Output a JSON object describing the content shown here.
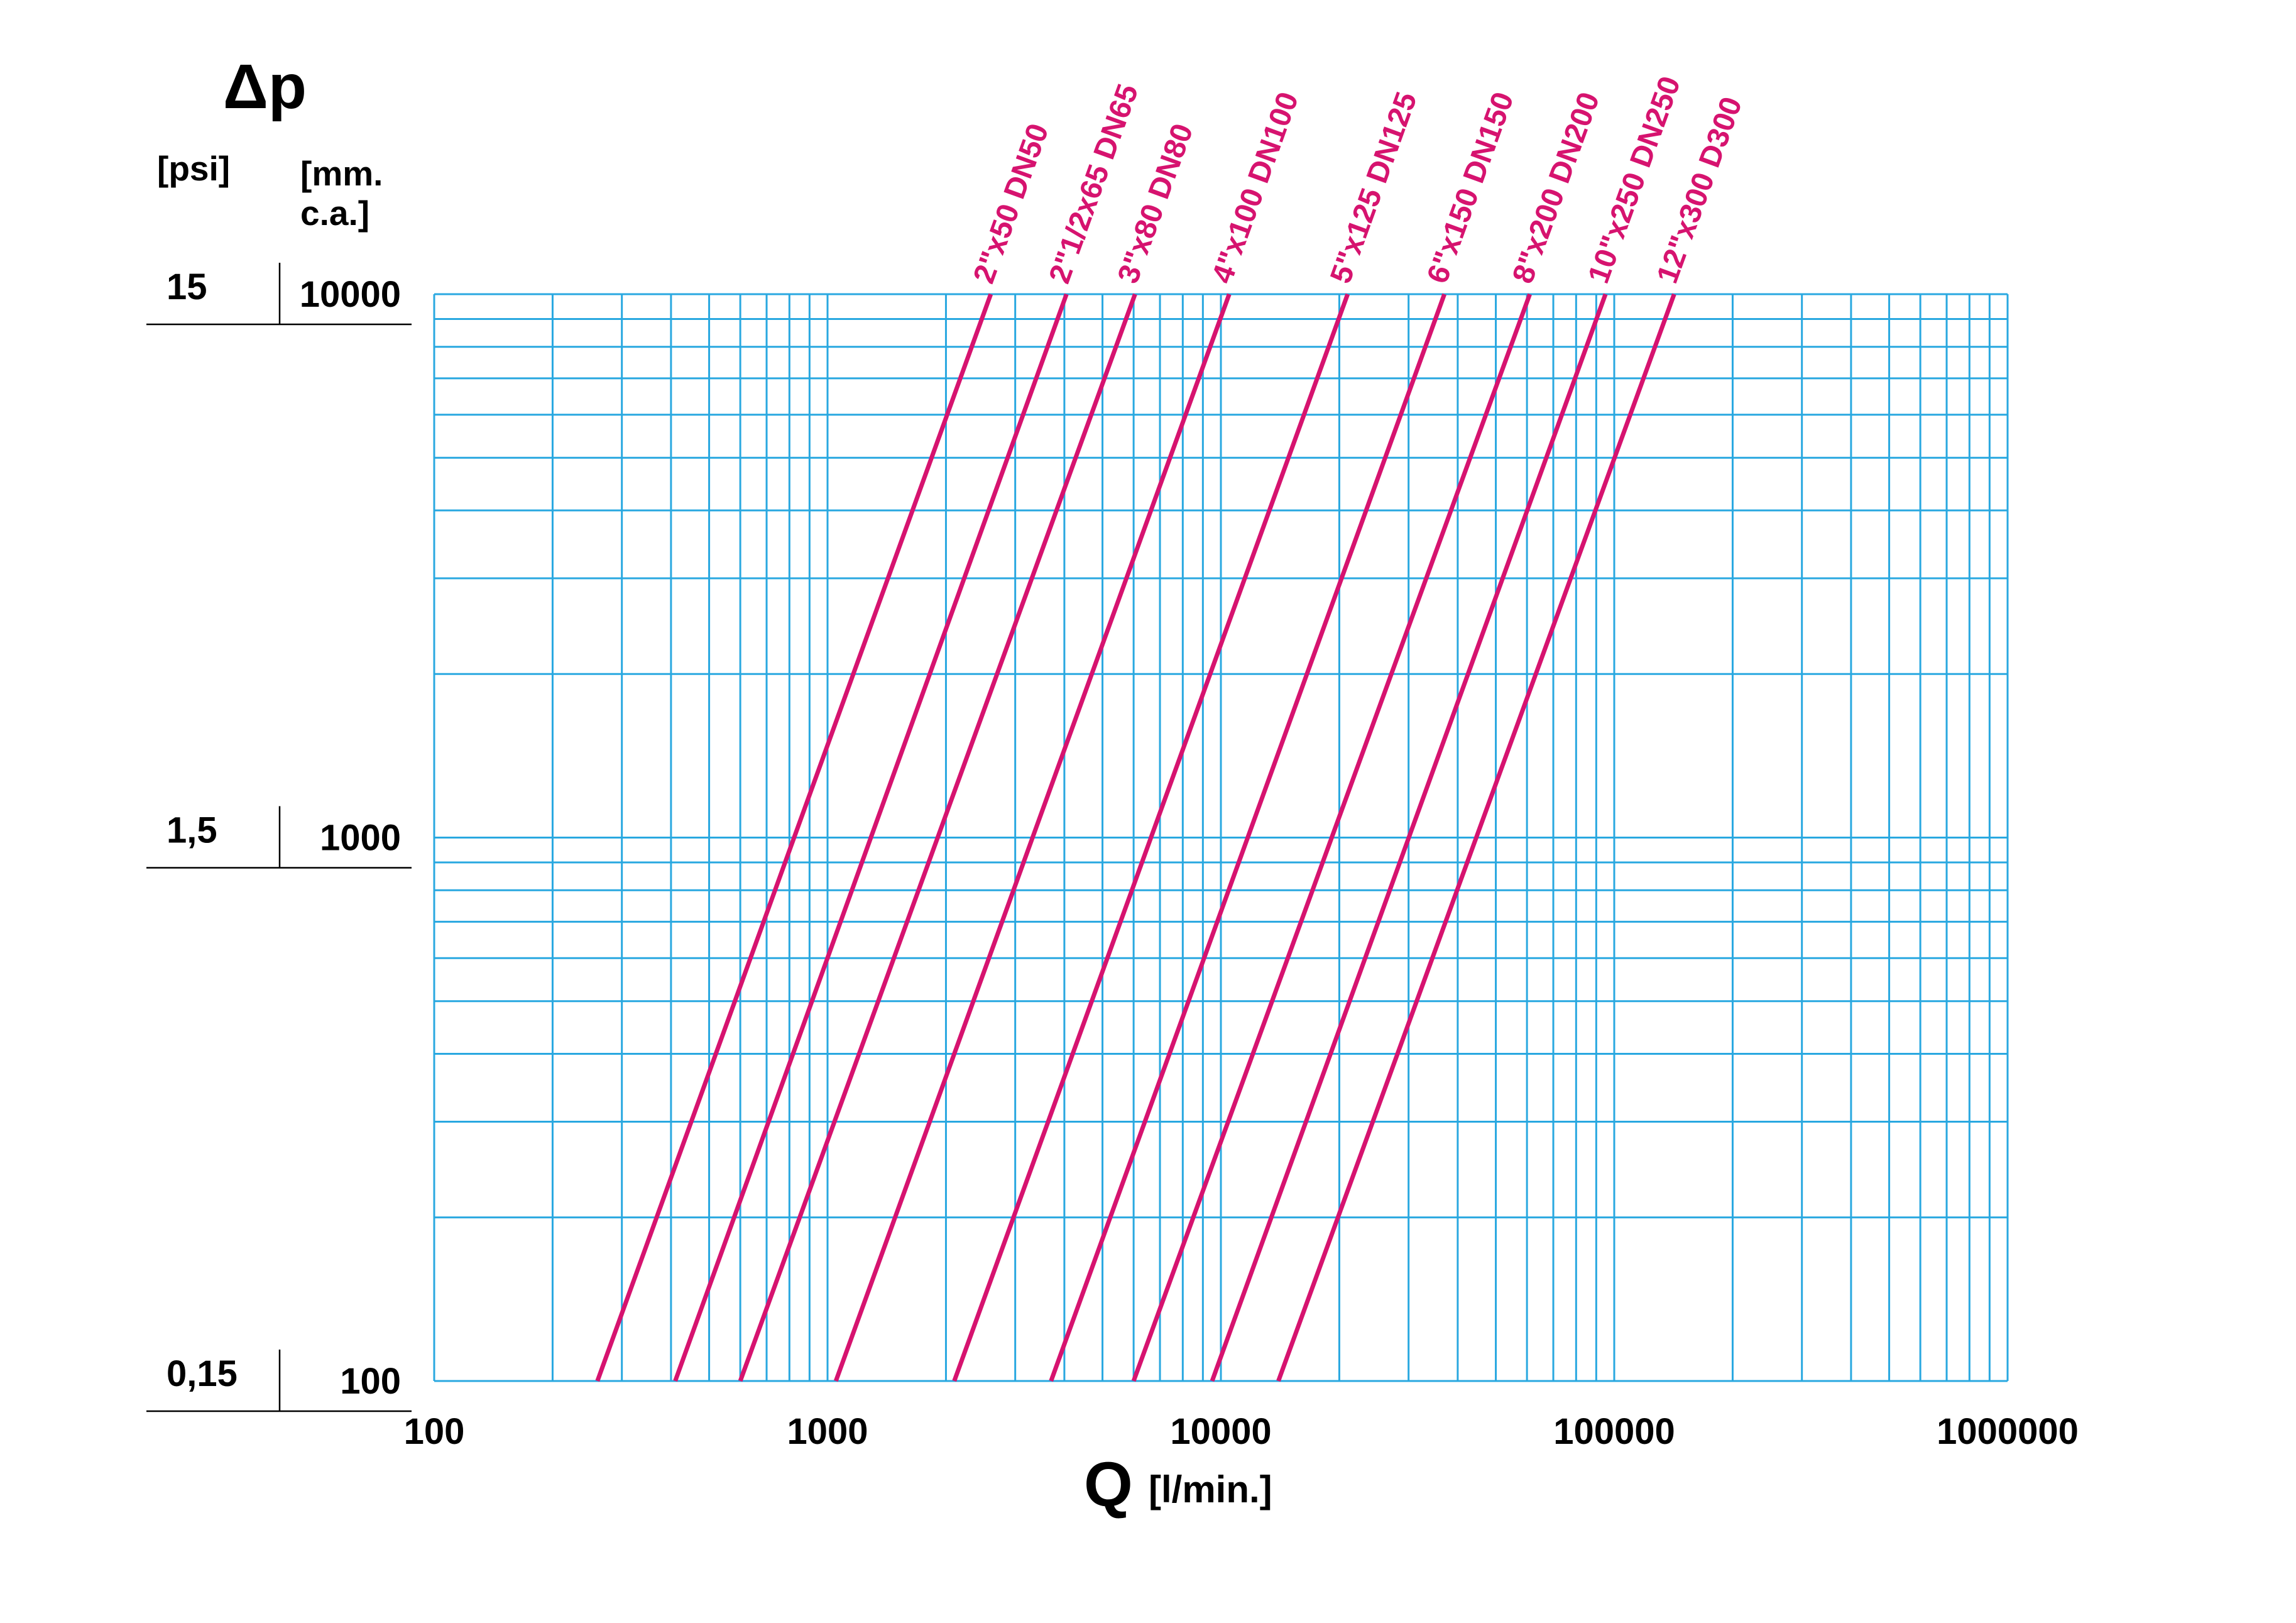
{
  "header": {
    "y_title": "Δp",
    "psi_unit": "[psi]",
    "mmca_unit": "[mm.\nc.a.]",
    "x_title": "Q",
    "x_unit": "[l/min.]"
  },
  "colors": {
    "grid": "#29a8e0",
    "series": "#d6136f",
    "text": "#000000"
  },
  "chart_data": {
    "type": "line",
    "title": "",
    "xlabel": "Q [l/min.]",
    "ylabel": "Δp",
    "x_scale": "log",
    "y_scale": "log",
    "xlim": [
      100,
      1000000
    ],
    "ylim": [
      100,
      10000
    ],
    "grid": true,
    "legend": "labels at top end of each line",
    "x_ticks": [
      "100",
      "1000",
      "10000",
      "100000",
      "1000000"
    ],
    "y_ticks_mmca": [
      "100",
      "1000",
      "10000"
    ],
    "y_ticks_psi": [
      "0,15",
      "1,5",
      "15"
    ],
    "y_unit_left": "[psi]",
    "y_unit_right": "[mm. c.a.]",
    "series": [
      {
        "name": "2\"x50 DN50",
        "x": [
          260,
          2600
        ],
        "y": [
          100,
          10000
        ]
      },
      {
        "name": "2\"1/2x65 DN65",
        "x": [
          410,
          4050
        ],
        "y": [
          100,
          10000
        ]
      },
      {
        "name": "3\"x80 DN80",
        "x": [
          600,
          6050
        ],
        "y": [
          100,
          10000
        ]
      },
      {
        "name": "4\"x100 DN100",
        "x": [
          1050,
          10500
        ],
        "y": [
          100,
          10000
        ]
      },
      {
        "name": "5\"x125 DN125",
        "x": [
          2100,
          21000
        ],
        "y": [
          100,
          10000
        ]
      },
      {
        "name": "6\"x150 DN150",
        "x": [
          3700,
          37000
        ],
        "y": [
          100,
          10000
        ]
      },
      {
        "name": "8\"x200  DN200",
        "x": [
          6000,
          61000
        ],
        "y": [
          100,
          10000
        ]
      },
      {
        "name": "10\"x250 DN250",
        "x": [
          9500,
          95000
        ],
        "y": [
          100,
          10000
        ]
      },
      {
        "name": "12\"x300 D300",
        "x": [
          14000,
          142000
        ],
        "y": [
          100,
          10000
        ]
      }
    ]
  }
}
